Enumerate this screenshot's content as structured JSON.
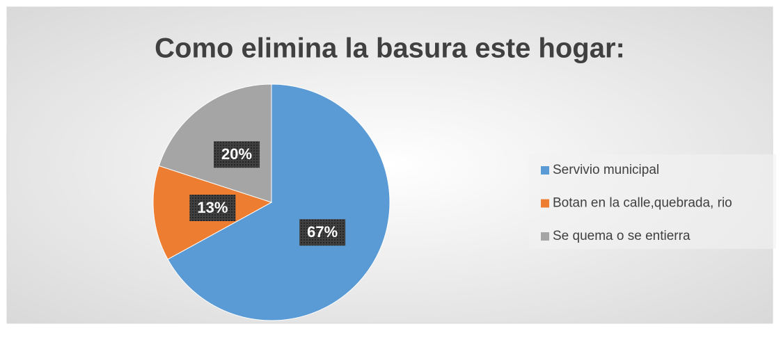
{
  "chart_data": {
    "type": "pie",
    "title": "Como elimina la basura este hogar:",
    "categories": [
      "Servivio municipal",
      "Botan en la calle,quebrada, rio",
      "Se quema o se entierra"
    ],
    "values": [
      67,
      13,
      20
    ],
    "value_labels": [
      "67%",
      "13%",
      "20%"
    ],
    "colors": [
      "#5b9bd5",
      "#ed7d31",
      "#a5a5a5"
    ],
    "legend": "right"
  }
}
